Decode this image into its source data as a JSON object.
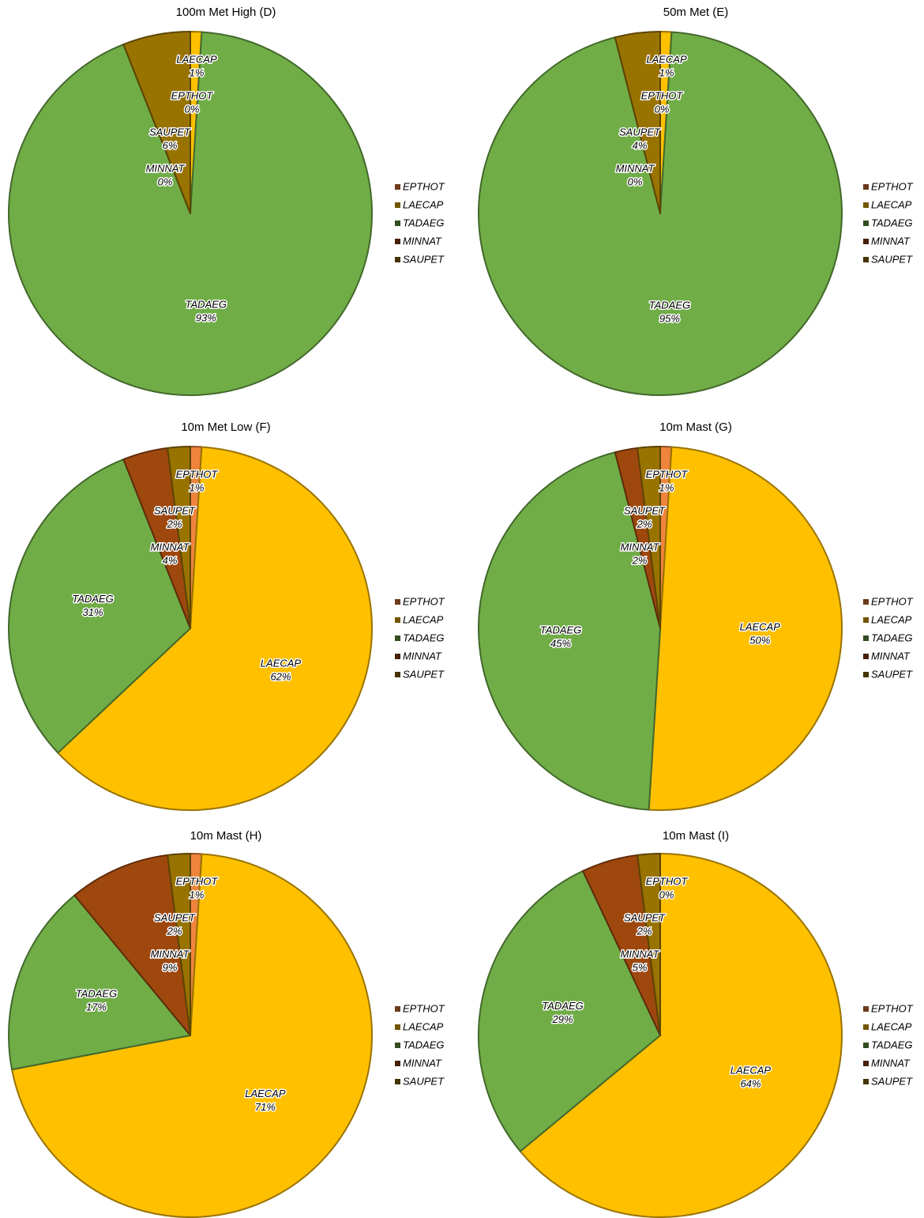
{
  "chart_data": [
    {
      "type": "pie",
      "title": "100m Met High (D)",
      "categories": [
        "EPTHOT",
        "LAECAP",
        "TADAEG",
        "MINNAT",
        "SAUPET"
      ],
      "values": [
        0,
        1,
        93,
        0,
        6
      ],
      "value_labels": [
        "0%",
        "1%",
        "93%",
        "0%",
        "6%"
      ],
      "colors": [
        "#f0843c",
        "#ffc000",
        "#70ad47",
        "#9e480e",
        "#997300"
      ]
    },
    {
      "type": "pie",
      "title": "50m Met (E)",
      "categories": [
        "EPTHOT",
        "LAECAP",
        "TADAEG",
        "MINNAT",
        "SAUPET"
      ],
      "values": [
        0,
        1,
        95,
        0,
        4
      ],
      "value_labels": [
        "0%",
        "1%",
        "95%",
        "0%",
        "4%"
      ],
      "colors": [
        "#f0843c",
        "#ffc000",
        "#70ad47",
        "#9e480e",
        "#997300"
      ]
    },
    {
      "type": "pie",
      "title": "10m Met Low (F)",
      "categories": [
        "EPTHOT",
        "LAECAP",
        "TADAEG",
        "MINNAT",
        "SAUPET"
      ],
      "values": [
        1,
        62,
        31,
        4,
        2
      ],
      "value_labels": [
        "1%",
        "62%",
        "31%",
        "4%",
        "2%"
      ],
      "colors": [
        "#f0843c",
        "#ffc000",
        "#70ad47",
        "#9e480e",
        "#997300"
      ]
    },
    {
      "type": "pie",
      "title": "10m Mast (G)",
      "categories": [
        "EPTHOT",
        "LAECAP",
        "TADAEG",
        "MINNAT",
        "SAUPET"
      ],
      "values": [
        1,
        50,
        45,
        2,
        2
      ],
      "value_labels": [
        "1%",
        "50%",
        "45%",
        "2%",
        "2%"
      ],
      "colors": [
        "#f0843c",
        "#ffc000",
        "#70ad47",
        "#9e480e",
        "#997300"
      ]
    },
    {
      "type": "pie",
      "title": "10m Mast (H)",
      "categories": [
        "EPTHOT",
        "LAECAP",
        "TADAEG",
        "MINNAT",
        "SAUPET"
      ],
      "values": [
        1,
        71,
        17,
        9,
        2
      ],
      "value_labels": [
        "1%",
        "71%",
        "17%",
        "9%",
        "2%"
      ],
      "colors": [
        "#f0843c",
        "#ffc000",
        "#70ad47",
        "#9e480e",
        "#997300"
      ]
    },
    {
      "type": "pie",
      "title": "10m Mast (I)",
      "categories": [
        "EPTHOT",
        "LAECAP",
        "TADAEG",
        "MINNAT",
        "SAUPET"
      ],
      "values": [
        0,
        64,
        29,
        5,
        2
      ],
      "value_labels": [
        "0%",
        "64%",
        "29%",
        "5%",
        "2%"
      ],
      "colors": [
        "#f0843c",
        "#ffc000",
        "#70ad47",
        "#9e480e",
        "#997300"
      ]
    }
  ]
}
